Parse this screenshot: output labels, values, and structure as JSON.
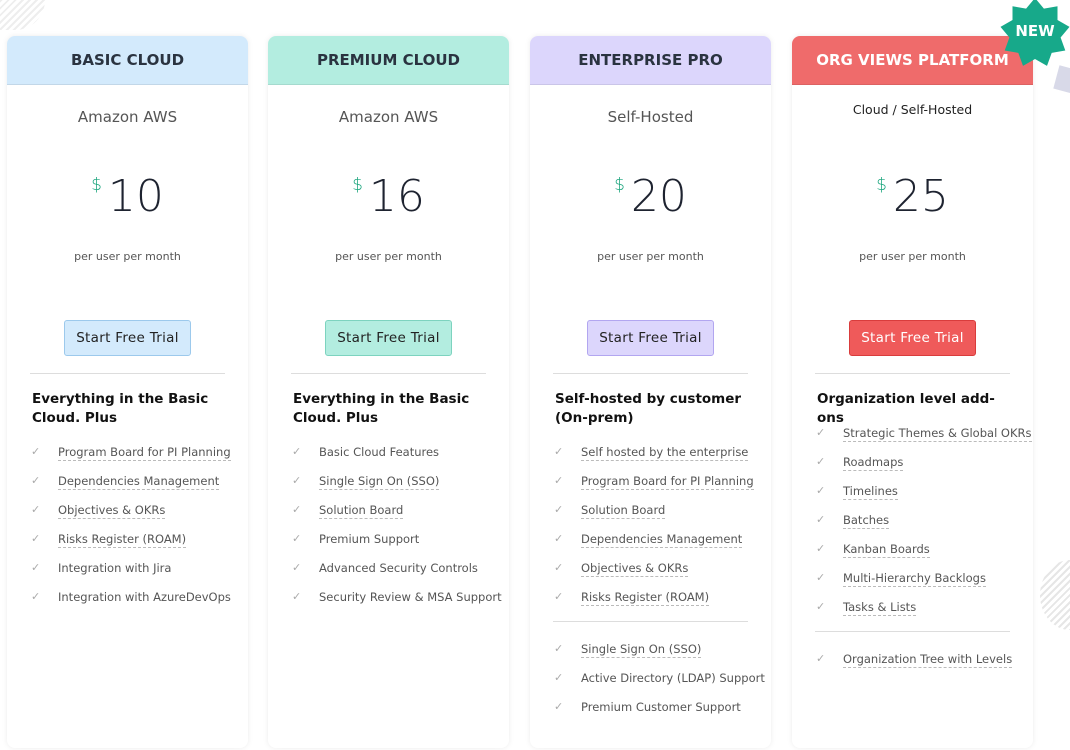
{
  "badge": "NEW",
  "plans": [
    {
      "title": "BASIC CLOUD",
      "hosting": "Amazon AWS",
      "currency": "$",
      "price": "10",
      "period": "per user per month",
      "cta": "Start Free Trial",
      "heading": "Everything in the Basic Cloud. Plus",
      "features": [
        {
          "label": "Program Board for PI Planning",
          "tip": true
        },
        {
          "label": "Dependencies Management",
          "tip": true
        },
        {
          "label": "Objectives & OKRs",
          "tip": true
        },
        {
          "label": "Risks Register (ROAM)",
          "tip": true
        },
        {
          "label": "Integration with Jira",
          "tip": false
        },
        {
          "label": "Integration with AzureDevOps",
          "tip": false
        }
      ],
      "extra": [],
      "colors": {
        "header": "#d3eafc",
        "button": "#d3eafc",
        "border": "#9cc9ec",
        "text": "#2a3340"
      }
    },
    {
      "title": "PREMIUM CLOUD",
      "hosting": "Amazon AWS",
      "currency": "$",
      "price": "16",
      "period": "per user per month",
      "cta": "Start Free Trial",
      "heading": "Everything in the Basic Cloud. Plus",
      "features": [
        {
          "label": "Basic Cloud Features",
          "tip": false
        },
        {
          "label": "Single Sign On (SSO)",
          "tip": true
        },
        {
          "label": "Solution Board",
          "tip": true
        },
        {
          "label": "Premium Support",
          "tip": false
        },
        {
          "label": "Advanced Security Controls",
          "tip": false
        },
        {
          "label": "Security Review & MSA Support",
          "tip": false
        }
      ],
      "extra": [],
      "colors": {
        "header": "#b3ede0",
        "button": "#b3ede0",
        "border": "#7dd3bf",
        "text": "#2a3340"
      }
    },
    {
      "title": "ENTERPRISE PRO",
      "hosting": "Self-Hosted",
      "currency": "$",
      "price": "20",
      "period": "per user per month",
      "cta": "Start Free Trial",
      "heading": "Self-hosted by customer (On-prem)",
      "features": [
        {
          "label": "Self hosted by the enterprise",
          "tip": true
        },
        {
          "label": "Program Board for PI Planning",
          "tip": true
        },
        {
          "label": "Solution Board",
          "tip": true
        },
        {
          "label": "Dependencies Management",
          "tip": true
        },
        {
          "label": "Objectives & OKRs",
          "tip": true
        },
        {
          "label": "Risks Register (ROAM)",
          "tip": true
        }
      ],
      "extra": [
        {
          "label": "Single Sign On (SSO)",
          "tip": true
        },
        {
          "label": "Active Directory (LDAP) Support",
          "tip": false
        },
        {
          "label": "Premium Customer Support",
          "tip": false
        }
      ],
      "colors": {
        "header": "#dcd6fc",
        "button": "#dcd6fc",
        "border": "#b2a6f0",
        "text": "#2a3340"
      }
    },
    {
      "title": "ORG VIEWS PLATFORM",
      "hosting": "Cloud / Self-Hosted",
      "currency": "$",
      "price": "25",
      "period": "per user per month",
      "cta": "Start Free Trial",
      "heading": "Organization level add-ons",
      "features": [
        {
          "label": "Strategic Themes & Global OKRs",
          "tip": true
        },
        {
          "label": "Roadmaps",
          "tip": true
        },
        {
          "label": "Timelines",
          "tip": true
        },
        {
          "label": "Batches",
          "tip": true
        },
        {
          "label": "Kanban Boards",
          "tip": true
        },
        {
          "label": "Multi-Hierarchy Backlogs",
          "tip": true
        },
        {
          "label": "Tasks & Lists",
          "tip": true
        }
      ],
      "extra": [
        {
          "label": "Organization Tree with Levels",
          "tip": true
        }
      ],
      "colors": {
        "header": "#ef6b6b",
        "button": "#ef5a5a",
        "border": "#d93c3c",
        "text": "#ffffff"
      }
    }
  ]
}
